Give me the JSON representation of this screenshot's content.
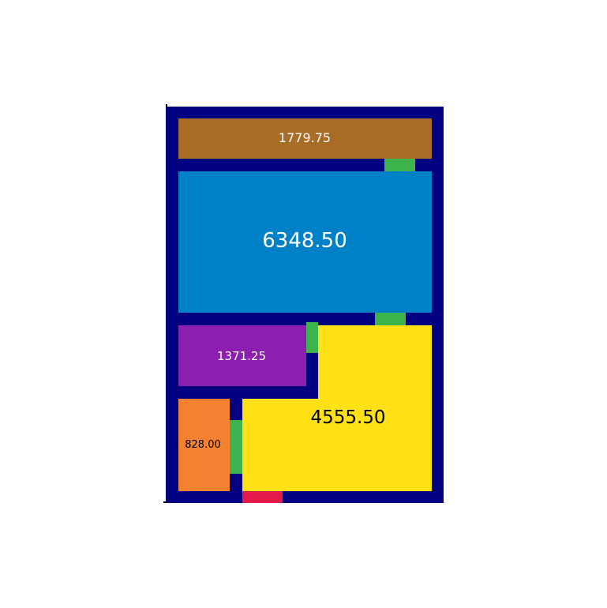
{
  "colors": {
    "wall": "#000080",
    "door": "#3cb44b",
    "entrance": "#e6194b",
    "background": "#ffffff"
  },
  "rooms": [
    {
      "id": "room-top",
      "label": "1779.75",
      "color": "#a96c27",
      "text_color": "#ffffff"
    },
    {
      "id": "room-large",
      "label": "6348.50",
      "color": "#0081c7",
      "text_color": "#ffffff"
    },
    {
      "id": "room-purple",
      "label": "1371.25",
      "color": "#8c1fb0",
      "text_color": "#ffffff"
    },
    {
      "id": "room-yellow",
      "label": "4555.50",
      "color": "#ffe116",
      "text_color": "#000000"
    },
    {
      "id": "room-orange",
      "label": "828.00",
      "color": "#f58231",
      "text_color": "#000000"
    }
  ]
}
